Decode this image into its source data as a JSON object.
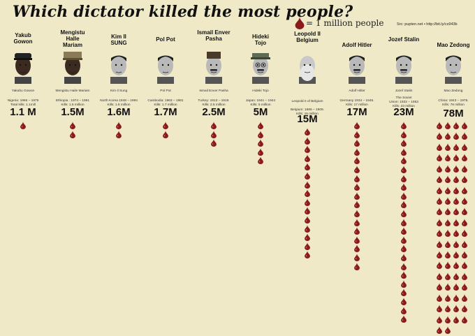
{
  "title": "Which dictator killed the most people?",
  "legend": {
    "label": "= 1 million people",
    "drop_color": "#8b1a1a"
  },
  "source": "Src: pupten.net • http://bit.ly/cs943b",
  "colors": {
    "background": "#efe9c8",
    "drop": "#8b1a1a"
  },
  "chart_data": {
    "type": "pictograph",
    "unit": "1 million people",
    "title": "Which dictator killed the most people?",
    "categories": [
      "Yakub Gowon",
      "Mengistu Haile Mariam",
      "Kim Il SUNG",
      "Pol Pot",
      "Ismail Enver Pasha",
      "Hideki Tojo",
      "Leopold II Belgium",
      "Adolf Hitler",
      "Jozef Stalin",
      "Mao Zedong"
    ],
    "values": [
      1.1,
      1.5,
      1.6,
      1.7,
      2.5,
      5,
      15,
      17,
      23,
      78
    ],
    "labels": [
      "1.1 M",
      "1.5M",
      "1.6M",
      "1.7M",
      "2.5M",
      "5M",
      "15M",
      "17M",
      "23M",
      "78M"
    ]
  },
  "dictators": [
    {
      "name": "Yakub\nGowon",
      "caption": "Yakubu Gowon",
      "detail": "Nigeria: 1966 – 1975\nTotal kills: 1.1mill",
      "total": "1.1 M",
      "kills": 1.1,
      "drop_columns": 1
    },
    {
      "name": "Mengistu\nHalle\nMariam",
      "caption": "Mengistu Haile Mariam",
      "detail": "Ethiopia : 1974 – 1991\nKills: 1.5 million",
      "total": "1.5M",
      "kills": 1.5,
      "drop_columns": 1
    },
    {
      "name": "Kim Il\nSUNG",
      "caption": "Kim Il Sung",
      "detail": "North Korea 1948 – 1994\nKills: 1.6 million",
      "total": "1.6M",
      "kills": 1.6,
      "drop_columns": 1
    },
    {
      "name": "Pol Pot",
      "caption": "Pol Pot",
      "detail": "Cambodia: 1963 – 1981\nKills: 1.7 million",
      "total": "1.7M",
      "kills": 1.7,
      "drop_columns": 1
    },
    {
      "name": "Ismail Enver\nPasha",
      "caption": "Ismail Enver Pasha",
      "detail": "Turkey: 1913 – 1919.\nKills: 2.5 million",
      "total": "2.5M",
      "kills": 2.5,
      "drop_columns": 1
    },
    {
      "name": "Hideki\nTojo",
      "caption": "Hideki Tojo",
      "detail": "Japan: 1941 – 1944\nKills: 5 million",
      "total": "5M",
      "kills": 5,
      "drop_columns": 1
    },
    {
      "name": "Leopold II\nBelgium",
      "caption": "Leopold II of Belgium",
      "detail": "Belgium: 1865 – 1909.\nKills: 15 million",
      "total": "15M",
      "kills": 15,
      "drop_columns": 1
    },
    {
      "name": "Adolf Hitler",
      "caption": "Adolf Hitler",
      "detail": "Germany 1934 – 1945.\nKills: 17 million",
      "total": "17M",
      "kills": 17,
      "drop_columns": 1
    },
    {
      "name": "Jozef Stalin",
      "caption": "Jozef Stalin",
      "detail": "The Soviet\nUnion: 1922 – 1953\nKills: 23 million",
      "total": "23M",
      "kills": 23,
      "drop_columns": 1
    },
    {
      "name": "Mao Zedong",
      "caption": "Mao Zedong",
      "detail": "China: 1943 – 1976.\nKills: 78 million",
      "total": "78M",
      "kills": 78,
      "drop_columns": 4
    }
  ]
}
